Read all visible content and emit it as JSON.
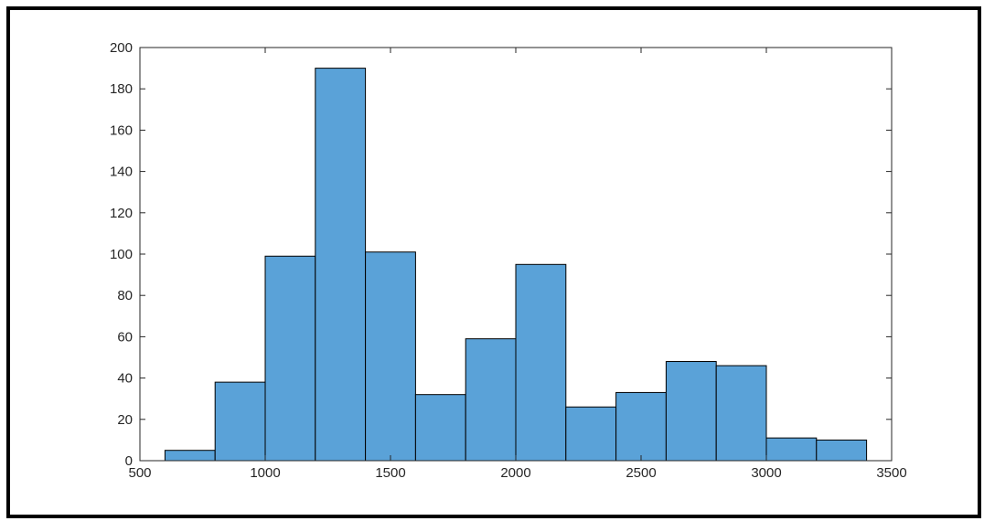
{
  "chart_data": {
    "type": "bar",
    "subtype": "histogram",
    "bin_edges": [
      600,
      800,
      1000,
      1200,
      1400,
      1600,
      1800,
      2000,
      2200,
      2400,
      2600,
      2800,
      3000,
      3200,
      3400
    ],
    "counts": [
      5,
      38,
      99,
      190,
      101,
      32,
      59,
      95,
      26,
      33,
      48,
      46,
      11,
      10
    ],
    "xlim": [
      500,
      3500
    ],
    "ylim": [
      0,
      200
    ],
    "xticks": [
      "500",
      "1000",
      "1500",
      "2000",
      "2500",
      "3000",
      "3500"
    ],
    "yticks": [
      "0",
      "20",
      "40",
      "60",
      "80",
      "100",
      "120",
      "140",
      "160",
      "180",
      "200"
    ],
    "title": "",
    "xlabel": "",
    "ylabel": "",
    "grid": false,
    "bar_color": "#5aa2d8",
    "edge_color": "#000000"
  }
}
